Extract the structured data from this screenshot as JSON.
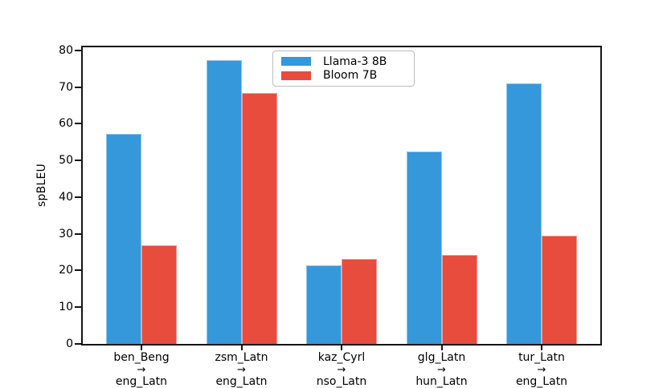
{
  "chart_data": {
    "type": "bar",
    "title": "",
    "xlabel": "",
    "ylabel": "spBLEU",
    "ylim": [
      0,
      81.3
    ],
    "yticks": [
      0,
      10,
      20,
      30,
      40,
      50,
      60,
      70,
      80
    ],
    "grid": false,
    "legend_position": "upper center",
    "categories": [
      {
        "source": "ben_Beng",
        "arrow": "→",
        "target": "eng_Latn"
      },
      {
        "source": "zsm_Latn",
        "arrow": "→",
        "target": "eng_Latn"
      },
      {
        "source": "kaz_Cyrl",
        "arrow": "→",
        "target": "nso_Latn"
      },
      {
        "source": "glg_Latn",
        "arrow": "→",
        "target": "hun_Latn"
      },
      {
        "source": "tur_Latn",
        "arrow": "→",
        "target": "eng_Latn"
      }
    ],
    "series": [
      {
        "name": "Llama-3 8B",
        "color": "#3498db",
        "values": [
          57.3,
          77.4,
          21.4,
          52.5,
          71.0
        ]
      },
      {
        "name": "Bloom 7B",
        "color": "#e74c3c",
        "values": [
          26.9,
          68.4,
          23.1,
          24.2,
          29.5
        ]
      }
    ]
  }
}
